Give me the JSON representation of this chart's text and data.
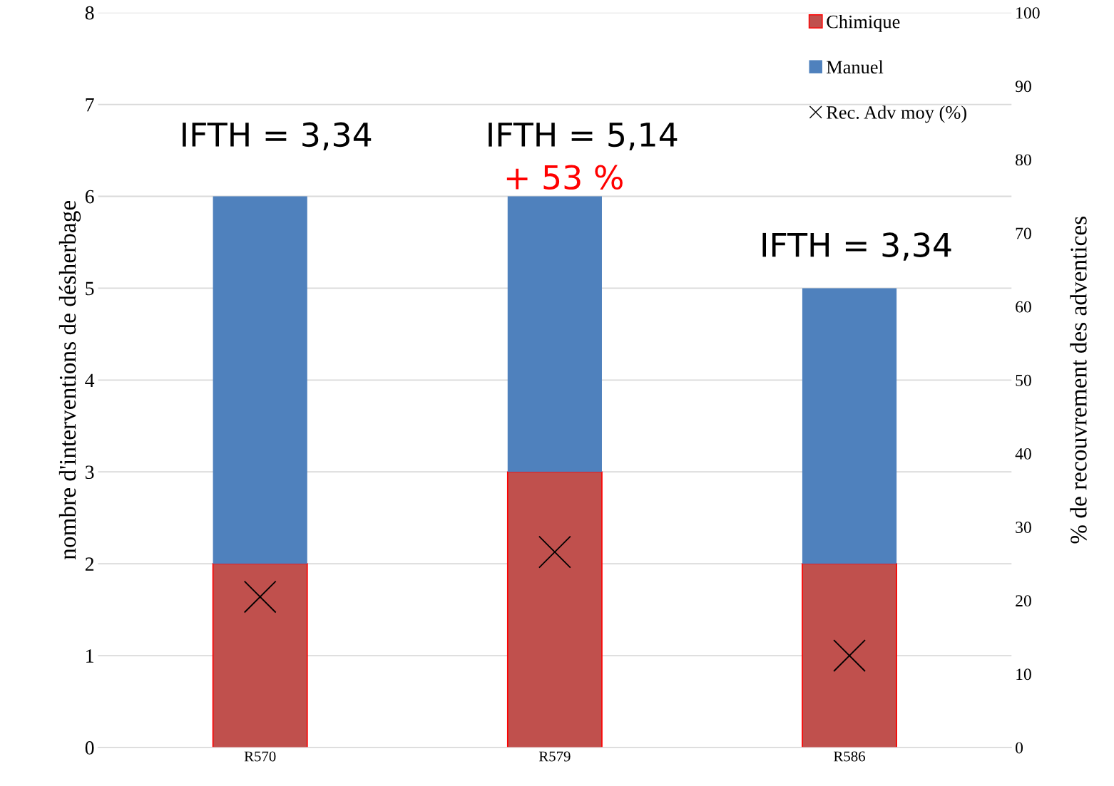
{
  "chart_data": {
    "type": "bar",
    "stacked": true,
    "categories": [
      "R570",
      "R579",
      "R586"
    ],
    "ylabel": "nombre d'interventions de désherbage",
    "y2label": "% de recouvrement des adventices",
    "ylim": [
      0,
      8
    ],
    "yticks": [
      0,
      1,
      2,
      3,
      4,
      5,
      6,
      7,
      8
    ],
    "y2lim": [
      0,
      100
    ],
    "y2ticks": [
      0,
      10,
      20,
      30,
      40,
      50,
      60,
      70,
      80,
      90,
      100
    ],
    "grid": "y",
    "legend": "top right",
    "series": [
      {
        "name": "Chimique",
        "color": "#c0504d",
        "values": [
          2,
          3,
          2
        ]
      },
      {
        "name": "Manuel",
        "color": "#4f81bd",
        "values": [
          4,
          3,
          3
        ]
      },
      {
        "name": "Rec. Adv moy (%)",
        "type": "scatter",
        "axis": "y2",
        "color": "#000000",
        "marker": "cross",
        "x": [
          "R570",
          "R579",
          "R586"
        ],
        "values": [
          20.5,
          26.6,
          12.5
        ]
      }
    ],
    "annotations": [
      "IFTH = 3,34",
      "IFTH = 5,14",
      "+ 53 %",
      "IFTH = 3,34"
    ]
  }
}
